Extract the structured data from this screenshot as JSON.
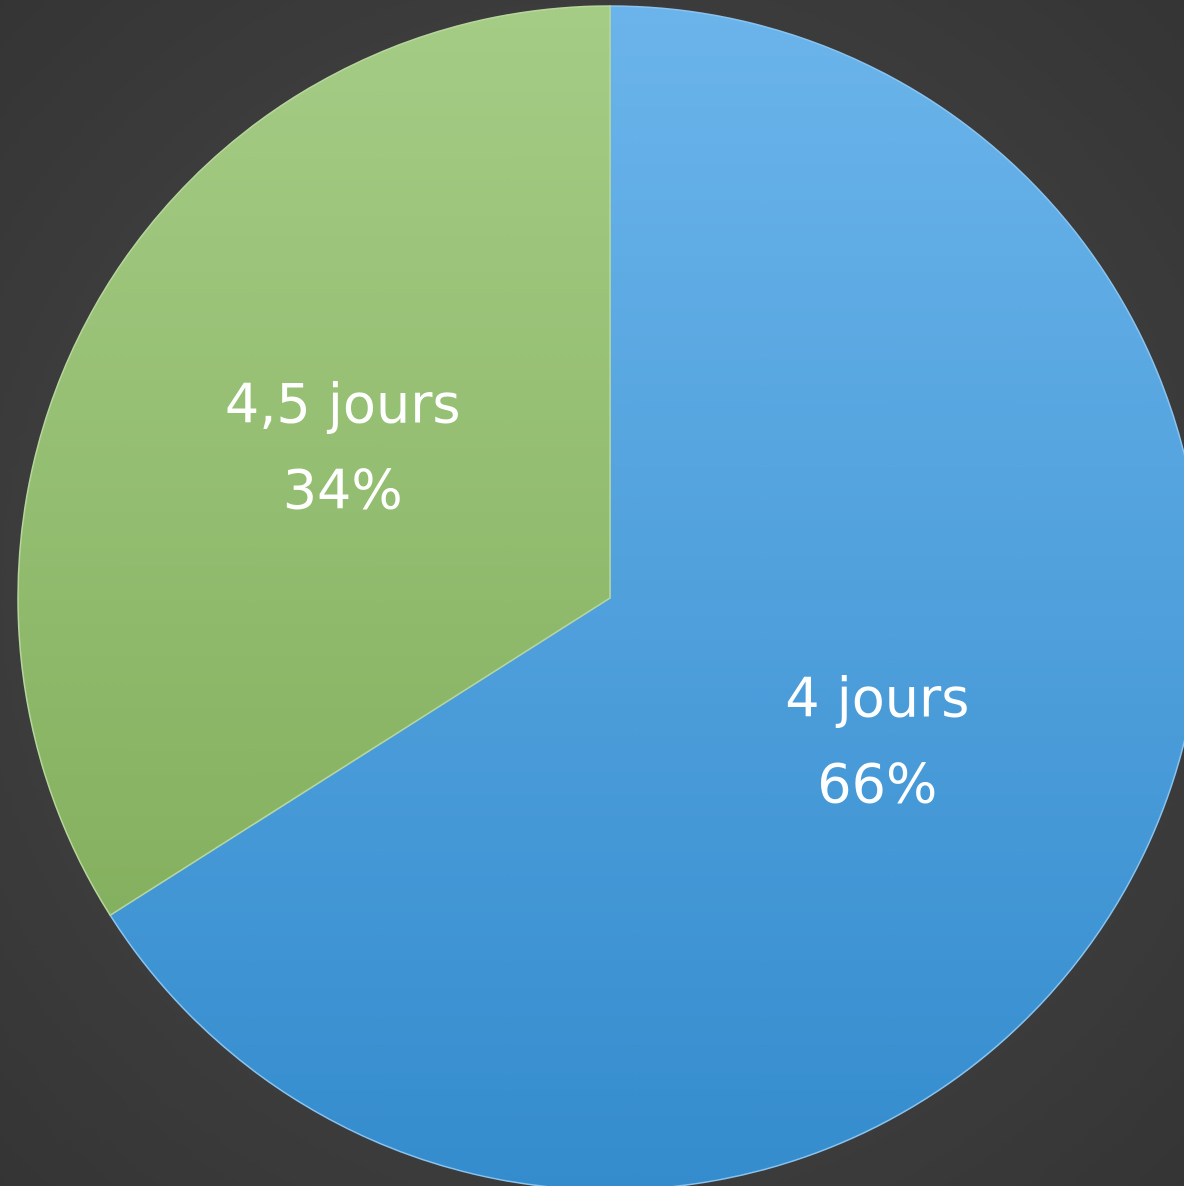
{
  "chart_data": {
    "type": "pie",
    "categories": [
      "4 jours",
      "4,5 jours"
    ],
    "values": [
      66,
      34
    ],
    "value_labels": [
      "66%",
      "34%"
    ],
    "colors": [
      "#3a9be4",
      "#87bb5c"
    ]
  }
}
